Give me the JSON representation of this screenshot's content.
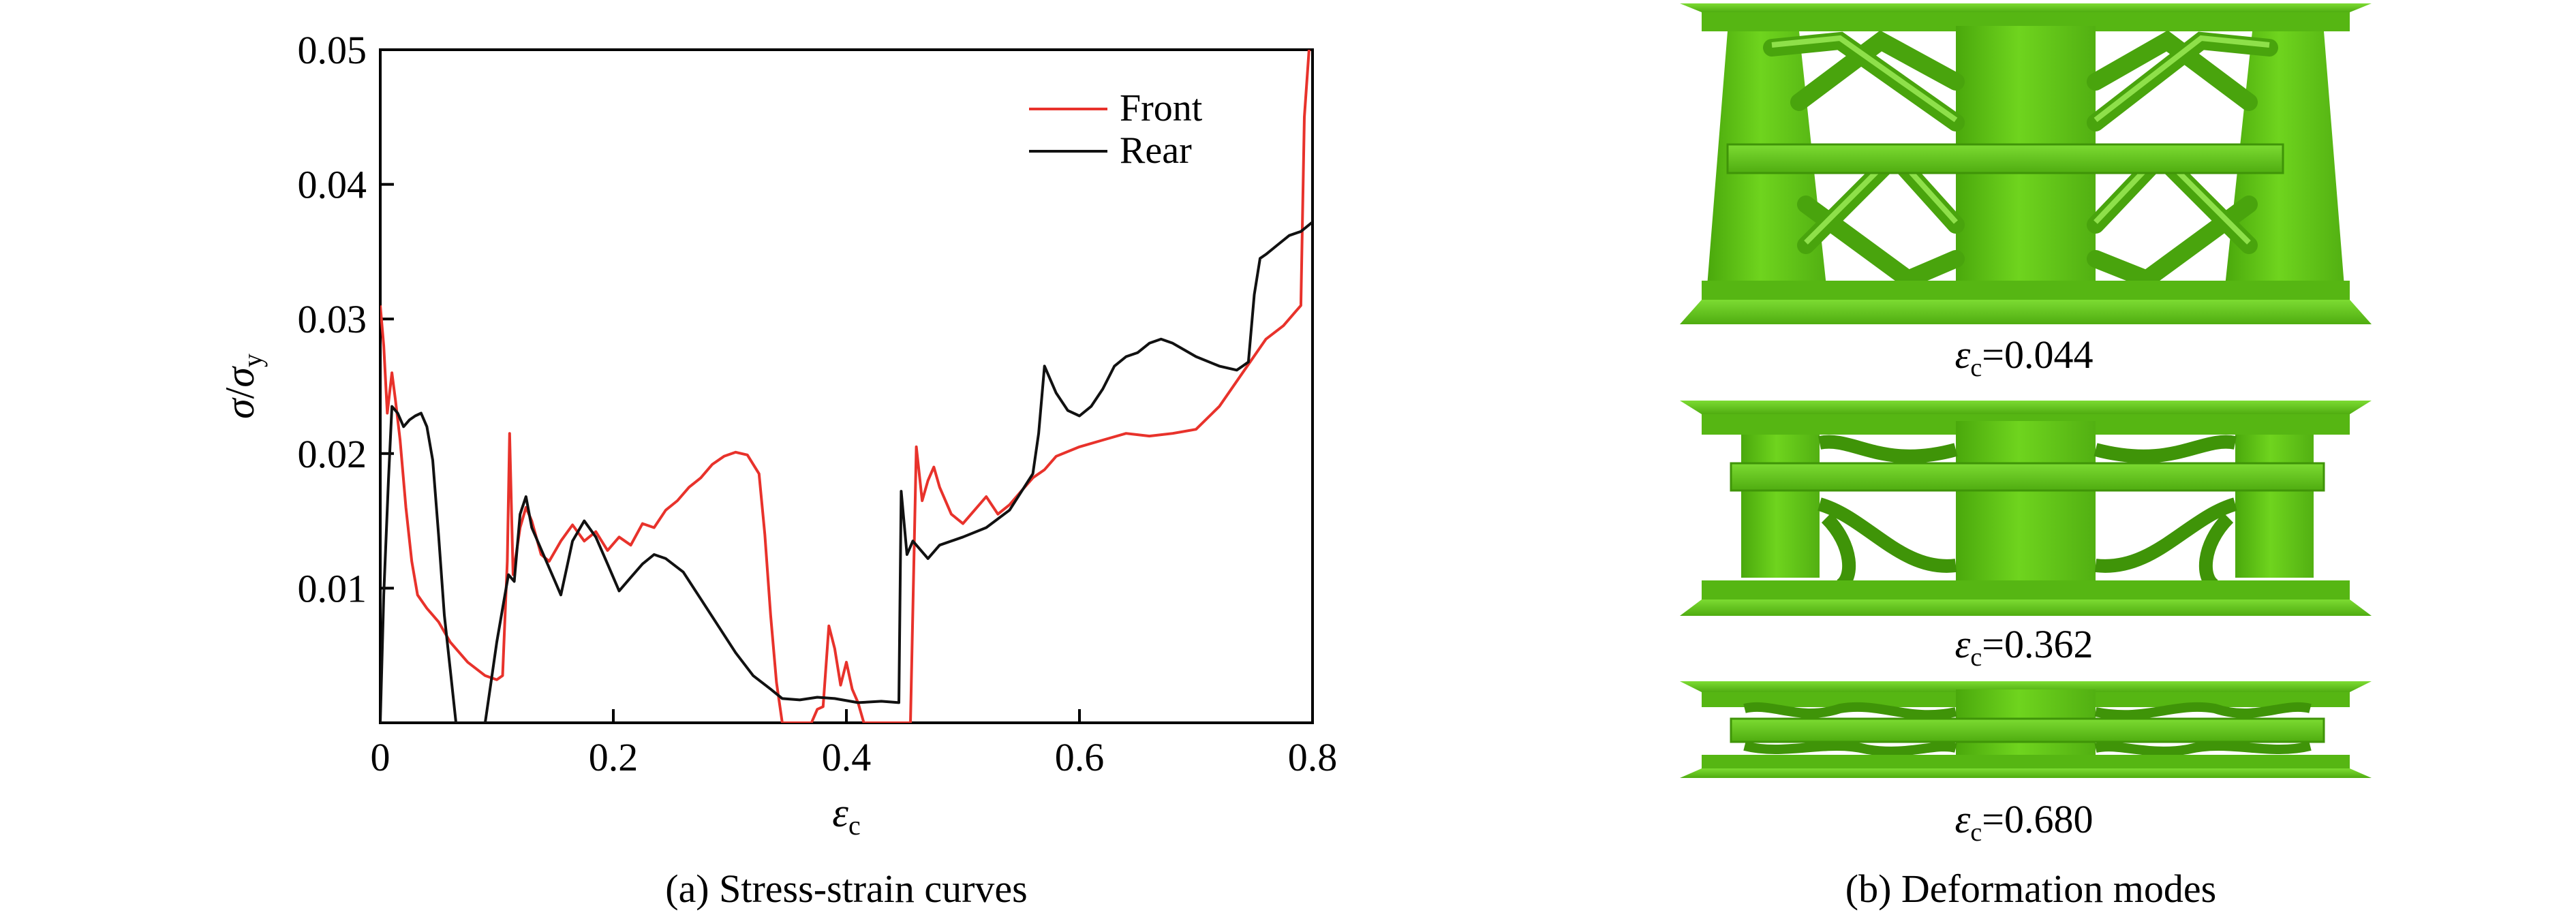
{
  "panels": {
    "a": {
      "caption": "(a) Stress-strain curves"
    },
    "b": {
      "caption": "(b) Deformation modes",
      "modes": [
        {
          "symbol": "ε",
          "sub": "c",
          "value": "=0.044"
        },
        {
          "symbol": "ε",
          "sub": "c",
          "value": "=0.362"
        },
        {
          "symbol": "ε",
          "sub": "c",
          "value": "=0.680"
        }
      ]
    }
  },
  "colors": {
    "front": "#e8322b",
    "rear": "#111111",
    "lattice": "#5dc312",
    "lattice_dark": "#3f9408",
    "lattice_light": "#8ee04a"
  },
  "chart_data": {
    "type": "line",
    "xlabel": {
      "main": "ε",
      "sub": "c"
    },
    "ylabel": {
      "num": "σ",
      "num_sub": "",
      "den": "σ",
      "den_sub": "y"
    },
    "xlim": [
      0,
      0.8
    ],
    "ylim": [
      0,
      0.05
    ],
    "xticks": [
      0,
      0.2,
      0.4,
      0.6,
      0.8
    ],
    "xtick_labels": [
      "0",
      "0.2",
      "0.4",
      "0.6",
      "0.8"
    ],
    "yticks": [
      0.01,
      0.02,
      0.03,
      0.04,
      0.05
    ],
    "ytick_labels": [
      "0.01",
      "0.02",
      "0.03",
      "0.04",
      "0.05"
    ],
    "grid": false,
    "legend_position": "top-right",
    "series": [
      {
        "name": "Front",
        "color": "#e8322b",
        "points": [
          [
            0,
            0.031
          ],
          [
            0.003,
            0.028
          ],
          [
            0.006,
            0.023
          ],
          [
            0.01,
            0.026
          ],
          [
            0.013,
            0.024
          ],
          [
            0.017,
            0.021
          ],
          [
            0.022,
            0.016
          ],
          [
            0.027,
            0.012
          ],
          [
            0.032,
            0.0095
          ],
          [
            0.04,
            0.0085
          ],
          [
            0.05,
            0.0075
          ],
          [
            0.06,
            0.006
          ],
          [
            0.075,
            0.0045
          ],
          [
            0.09,
            0.0035
          ],
          [
            0.1,
            0.0032
          ],
          [
            0.105,
            0.0035
          ],
          [
            0.109,
            0.012
          ],
          [
            0.111,
            0.0215
          ],
          [
            0.114,
            0.011
          ],
          [
            0.12,
            0.0145
          ],
          [
            0.125,
            0.016
          ],
          [
            0.13,
            0.015
          ],
          [
            0.138,
            0.0125
          ],
          [
            0.145,
            0.012
          ],
          [
            0.155,
            0.0135
          ],
          [
            0.165,
            0.0147
          ],
          [
            0.175,
            0.0135
          ],
          [
            0.185,
            0.0142
          ],
          [
            0.195,
            0.0128
          ],
          [
            0.205,
            0.0138
          ],
          [
            0.215,
            0.0132
          ],
          [
            0.225,
            0.0148
          ],
          [
            0.235,
            0.0145
          ],
          [
            0.245,
            0.0158
          ],
          [
            0.255,
            0.0165
          ],
          [
            0.265,
            0.0175
          ],
          [
            0.275,
            0.0182
          ],
          [
            0.285,
            0.0192
          ],
          [
            0.295,
            0.0198
          ],
          [
            0.305,
            0.0201
          ],
          [
            0.315,
            0.0199
          ],
          [
            0.325,
            0.0185
          ],
          [
            0.33,
            0.014
          ],
          [
            0.335,
            0.008
          ],
          [
            0.34,
            0.003
          ],
          [
            0.345,
            0.0
          ],
          [
            0.36,
            0.0
          ],
          [
            0.37,
            0.0
          ],
          [
            0.375,
            0.001
          ],
          [
            0.38,
            0.0012
          ],
          [
            0.385,
            0.0072
          ],
          [
            0.39,
            0.0055
          ],
          [
            0.395,
            0.0028
          ],
          [
            0.4,
            0.0045
          ],
          [
            0.405,
            0.0025
          ],
          [
            0.41,
            0.0015
          ],
          [
            0.415,
            0.0
          ],
          [
            0.455,
            0.0
          ],
          [
            0.46,
            0.0205
          ],
          [
            0.465,
            0.0165
          ],
          [
            0.47,
            0.018
          ],
          [
            0.475,
            0.019
          ],
          [
            0.48,
            0.0175
          ],
          [
            0.49,
            0.0155
          ],
          [
            0.5,
            0.0148
          ],
          [
            0.51,
            0.0158
          ],
          [
            0.52,
            0.0168
          ],
          [
            0.53,
            0.0155
          ],
          [
            0.54,
            0.0162
          ],
          [
            0.55,
            0.0172
          ],
          [
            0.56,
            0.0182
          ],
          [
            0.57,
            0.0188
          ],
          [
            0.58,
            0.0198
          ],
          [
            0.6,
            0.0205
          ],
          [
            0.62,
            0.021
          ],
          [
            0.64,
            0.0215
          ],
          [
            0.66,
            0.0213
          ],
          [
            0.68,
            0.0215
          ],
          [
            0.7,
            0.0218
          ],
          [
            0.72,
            0.0235
          ],
          [
            0.74,
            0.026
          ],
          [
            0.76,
            0.0285
          ],
          [
            0.775,
            0.0295
          ],
          [
            0.785,
            0.0305
          ],
          [
            0.79,
            0.031
          ],
          [
            0.793,
            0.045
          ],
          [
            0.797,
            0.05
          ]
        ]
      },
      {
        "name": "Rear",
        "color": "#111111",
        "points": [
          [
            0,
            0.0
          ],
          [
            0.003,
            0.0095
          ],
          [
            0.007,
            0.018
          ],
          [
            0.01,
            0.0235
          ],
          [
            0.015,
            0.023
          ],
          [
            0.02,
            0.022
          ],
          [
            0.025,
            0.0225
          ],
          [
            0.03,
            0.0228
          ],
          [
            0.035,
            0.023
          ],
          [
            0.04,
            0.022
          ],
          [
            0.045,
            0.0195
          ],
          [
            0.05,
            0.014
          ],
          [
            0.055,
            0.008
          ],
          [
            0.06,
            0.004
          ],
          [
            0.065,
            0.0
          ],
          [
            0.09,
            0.0
          ],
          [
            0.095,
            0.003
          ],
          [
            0.1,
            0.006
          ],
          [
            0.105,
            0.0085
          ],
          [
            0.11,
            0.011
          ],
          [
            0.115,
            0.0105
          ],
          [
            0.12,
            0.0155
          ],
          [
            0.125,
            0.0168
          ],
          [
            0.13,
            0.0145
          ],
          [
            0.14,
            0.0125
          ],
          [
            0.15,
            0.0105
          ],
          [
            0.155,
            0.0095
          ],
          [
            0.16,
            0.0115
          ],
          [
            0.165,
            0.0135
          ],
          [
            0.175,
            0.015
          ],
          [
            0.185,
            0.0138
          ],
          [
            0.195,
            0.0118
          ],
          [
            0.205,
            0.0098
          ],
          [
            0.215,
            0.0108
          ],
          [
            0.225,
            0.0118
          ],
          [
            0.235,
            0.0125
          ],
          [
            0.245,
            0.0122
          ],
          [
            0.26,
            0.0112
          ],
          [
            0.275,
            0.0092
          ],
          [
            0.29,
            0.0072
          ],
          [
            0.305,
            0.0052
          ],
          [
            0.32,
            0.0035
          ],
          [
            0.335,
            0.0025
          ],
          [
            0.345,
            0.0018
          ],
          [
            0.36,
            0.0017
          ],
          [
            0.375,
            0.0019
          ],
          [
            0.39,
            0.0018
          ],
          [
            0.41,
            0.0015
          ],
          [
            0.43,
            0.0016
          ],
          [
            0.445,
            0.0015
          ],
          [
            0.447,
            0.0172
          ],
          [
            0.452,
            0.0125
          ],
          [
            0.457,
            0.0135
          ],
          [
            0.47,
            0.0122
          ],
          [
            0.48,
            0.0132
          ],
          [
            0.5,
            0.0138
          ],
          [
            0.52,
            0.0145
          ],
          [
            0.54,
            0.0158
          ],
          [
            0.56,
            0.0185
          ],
          [
            0.565,
            0.0215
          ],
          [
            0.57,
            0.0265
          ],
          [
            0.58,
            0.0245
          ],
          [
            0.59,
            0.0232
          ],
          [
            0.6,
            0.0228
          ],
          [
            0.61,
            0.0235
          ],
          [
            0.62,
            0.0248
          ],
          [
            0.63,
            0.0265
          ],
          [
            0.64,
            0.0272
          ],
          [
            0.65,
            0.0275
          ],
          [
            0.66,
            0.0282
          ],
          [
            0.67,
            0.0285
          ],
          [
            0.68,
            0.0282
          ],
          [
            0.7,
            0.0272
          ],
          [
            0.72,
            0.0265
          ],
          [
            0.735,
            0.0262
          ],
          [
            0.74,
            0.0265
          ],
          [
            0.745,
            0.0268
          ],
          [
            0.75,
            0.0318
          ],
          [
            0.755,
            0.0345
          ],
          [
            0.76,
            0.0348
          ],
          [
            0.77,
            0.0355
          ],
          [
            0.78,
            0.0362
          ],
          [
            0.79,
            0.0365
          ],
          [
            0.8,
            0.0372
          ]
        ]
      }
    ]
  }
}
